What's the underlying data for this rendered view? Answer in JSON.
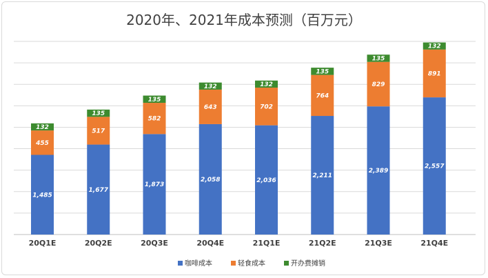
{
  "chart_data": {
    "type": "bar",
    "stacked": true,
    "title": "2020年、2021年成本预测（百万元）",
    "xlabel": "",
    "ylabel": "",
    "categories": [
      "20Q1E",
      "20Q2E",
      "20Q3E",
      "20Q4E",
      "21Q1E",
      "21Q2E",
      "21Q3E",
      "21Q4E"
    ],
    "series": [
      {
        "name": "咖啡成本",
        "color": "#4472c4",
        "values": [
          1485,
          1677,
          1873,
          2058,
          2036,
          2211,
          2389,
          2557
        ],
        "labels": [
          "1,485",
          "1,677",
          "1,873",
          "2,058",
          "2,036",
          "2,211",
          "2,389",
          "2,557"
        ]
      },
      {
        "name": "轻食成本",
        "color": "#ed7d31",
        "values": [
          455,
          517,
          582,
          643,
          702,
          764,
          829,
          891
        ],
        "labels": [
          "455",
          "517",
          "582",
          "643",
          "702",
          "764",
          "829",
          "891"
        ]
      },
      {
        "name": "开办费摊销",
        "color": "#3d8b2f",
        "values": [
          132,
          135,
          135,
          132,
          132,
          135,
          135,
          132
        ],
        "labels": [
          "132",
          "135",
          "135",
          "132",
          "132",
          "135",
          "135",
          "132"
        ]
      }
    ],
    "ylim": [
      0,
      3600
    ],
    "grid": true,
    "legend": "bottom"
  }
}
